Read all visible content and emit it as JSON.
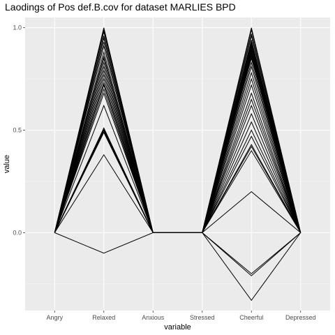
{
  "chart_data": {
    "type": "line",
    "title": "Laodings of Pos def.B.cov for dataset MARLIES BPD",
    "xlabel": "variable",
    "ylabel": "value",
    "categories": [
      "Angry",
      "Relaxed",
      "Anxious",
      "Stressed",
      "Cheerful",
      "Depressed"
    ],
    "ylim": [
      -0.38,
      1.05
    ],
    "yticks": [
      0.0,
      0.5,
      1.0
    ],
    "ytick_labels": [
      "0.0",
      "0.5",
      "1.0"
    ],
    "grid": true,
    "legend": "none",
    "series": [
      {
        "values": [
          0,
          1.0,
          0,
          0,
          1.0,
          0
        ]
      },
      {
        "values": [
          0,
          0.99,
          0,
          0,
          0.99,
          0
        ]
      },
      {
        "values": [
          0,
          0.98,
          0,
          0,
          0.97,
          0
        ]
      },
      {
        "values": [
          0,
          0.96,
          0,
          0,
          0.96,
          0
        ]
      },
      {
        "values": [
          0,
          0.95,
          0,
          0,
          0.94,
          0
        ]
      },
      {
        "values": [
          0,
          0.93,
          0,
          0,
          0.93,
          0
        ]
      },
      {
        "values": [
          0,
          0.91,
          0,
          0,
          0.92,
          0
        ]
      },
      {
        "values": [
          0,
          0.88,
          0,
          0,
          0.91,
          0
        ]
      },
      {
        "values": [
          0,
          0.86,
          0,
          0,
          0.9,
          0
        ]
      },
      {
        "values": [
          0,
          0.85,
          0,
          0,
          0.89,
          0
        ]
      },
      {
        "values": [
          0,
          0.83,
          0,
          0,
          0.88,
          0
        ]
      },
      {
        "values": [
          0,
          0.81,
          0,
          0,
          0.87,
          0
        ]
      },
      {
        "values": [
          0,
          0.79,
          0,
          0,
          0.86,
          0
        ]
      },
      {
        "values": [
          0,
          0.77,
          0,
          0,
          0.85,
          0
        ]
      },
      {
        "values": [
          0,
          0.75,
          0,
          0,
          0.83,
          0
        ]
      },
      {
        "values": [
          0,
          0.73,
          0,
          0,
          0.81,
          0
        ]
      },
      {
        "values": [
          0,
          0.72,
          0,
          0,
          0.78,
          0
        ]
      },
      {
        "values": [
          0,
          0.7,
          0,
          0,
          0.75,
          0
        ]
      },
      {
        "values": [
          0,
          0.68,
          0,
          0,
          0.72,
          0
        ]
      },
      {
        "values": [
          0,
          0.62,
          0,
          0,
          0.68,
          0
        ]
      },
      {
        "values": [
          0,
          0.51,
          0,
          0,
          0.65,
          0
        ]
      },
      {
        "values": [
          0,
          0.5,
          0,
          0,
          0.62,
          0
        ]
      },
      {
        "values": [
          0,
          0.49,
          0,
          0,
          0.58,
          0
        ]
      },
      {
        "values": [
          0,
          0.49,
          0,
          0,
          0.54,
          0
        ]
      },
      {
        "values": [
          0,
          0.49,
          0,
          0,
          0.5,
          0
        ]
      },
      {
        "values": [
          0,
          0.5,
          0,
          0,
          0.47,
          0
        ]
      },
      {
        "values": [
          0,
          0.5,
          0,
          0,
          0.43,
          0
        ]
      },
      {
        "values": [
          0,
          0.51,
          0,
          0,
          0.42,
          0
        ]
      },
      {
        "values": [
          0,
          0.38,
          0,
          0,
          0.4,
          0
        ]
      },
      {
        "values": [
          0,
          0.5,
          0,
          0,
          0.2,
          0
        ]
      },
      {
        "values": [
          0,
          0.5,
          0,
          0,
          -0.2,
          0
        ]
      },
      {
        "values": [
          0,
          0.5,
          0,
          0,
          -0.21,
          0
        ]
      },
      {
        "values": [
          0,
          -0.1,
          0,
          0,
          -0.33,
          0
        ]
      }
    ]
  }
}
